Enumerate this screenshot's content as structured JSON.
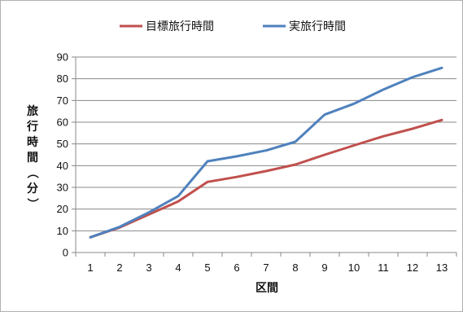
{
  "chart_data": {
    "type": "line",
    "title": "",
    "xlabel": "区間",
    "ylabel": "旅行時間（分）",
    "categories": [
      "1",
      "2",
      "3",
      "4",
      "5",
      "6",
      "7",
      "8",
      "9",
      "10",
      "11",
      "12",
      "13"
    ],
    "ylim": [
      0,
      90
    ],
    "yticks": [
      "0",
      "10",
      "20",
      "30",
      "40",
      "50",
      "60",
      "70",
      "80",
      "90"
    ],
    "grid": true,
    "legend_position": "top",
    "series": [
      {
        "name": "目標旅行時間",
        "color": "#c0504d",
        "values": [
          7,
          11.5,
          17.5,
          23.5,
          32.5,
          34.8,
          37.5,
          40.5,
          45,
          49.3,
          53.5,
          57,
          61
        ]
      },
      {
        "name": "実旅行時間",
        "color": "#4f81bd",
        "values": [
          7,
          11.8,
          18.5,
          26,
          42,
          44.3,
          47,
          51,
          63.5,
          68.5,
          75,
          80.7,
          85
        ]
      }
    ]
  }
}
